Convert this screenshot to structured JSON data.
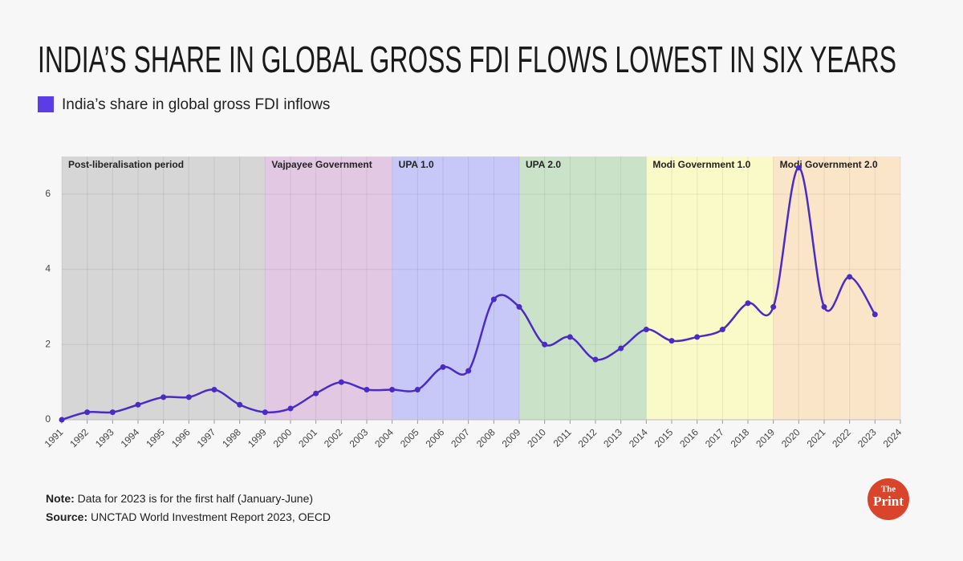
{
  "chart_data": {
    "type": "line",
    "title": "INDIA’S SHARE IN GLOBAL GROSS FDI FLOWS LOWEST IN SIX YEARS",
    "x": [
      1991,
      1992,
      1993,
      1994,
      1995,
      1996,
      1997,
      1998,
      1999,
      2000,
      2001,
      2002,
      2003,
      2004,
      2005,
      2006,
      2007,
      2008,
      2009,
      2010,
      2011,
      2012,
      2013,
      2014,
      2015,
      2016,
      2017,
      2018,
      2019,
      2020,
      2021,
      2022,
      2023
    ],
    "series": [
      {
        "name": "India’s share in global gross FDI inflows",
        "color": "#4a2bc4",
        "legend_color": "#5b3de8",
        "values": [
          0,
          0.2,
          0.2,
          0.4,
          0.6,
          0.6,
          0.8,
          0.4,
          0.2,
          0.3,
          0.7,
          1.0,
          0.8,
          0.8,
          0.8,
          1.4,
          1.3,
          3.2,
          3.0,
          2.0,
          2.2,
          1.6,
          1.9,
          2.4,
          2.1,
          2.2,
          2.4,
          3.1,
          3.0,
          6.7,
          3.0,
          3.8,
          2.8
        ]
      }
    ],
    "periods": [
      {
        "label": "Post-liberalisation period",
        "start": 1991,
        "end": 1999,
        "color": "#d6d6d6"
      },
      {
        "label": "Vajpayee Government",
        "start": 1999,
        "end": 2004,
        "color": "#e3c8e3"
      },
      {
        "label": "UPA 1.0",
        "start": 2004,
        "end": 2009,
        "color": "#c8c8f8"
      },
      {
        "label": "UPA 2.0",
        "start": 2009,
        "end": 2014,
        "color": "#cae3c8"
      },
      {
        "label": "Modi Government 1.0",
        "start": 2014,
        "end": 2019,
        "color": "#fafac8"
      },
      {
        "label": "Modi Government 2.0",
        "start": 2019,
        "end": 2024,
        "color": "#fbe5c8"
      }
    ],
    "xlim": [
      1991,
      2024
    ],
    "xticks": [
      1991,
      1992,
      1993,
      1994,
      1995,
      1996,
      1997,
      1998,
      1999,
      2000,
      2001,
      2002,
      2003,
      2004,
      2005,
      2006,
      2007,
      2008,
      2009,
      2010,
      2011,
      2012,
      2013,
      2014,
      2015,
      2016,
      2017,
      2018,
      2019,
      2020,
      2021,
      2022,
      2023,
      2024
    ],
    "ylim": [
      0,
      7
    ],
    "yticks": [
      0,
      2,
      4,
      6
    ],
    "grid": true,
    "note_label": "Note:",
    "note": "Data for 2023 is for the first half (January-June)",
    "source_label": "Source:",
    "source": "UNCTAD World Investment Report 2023, OECD",
    "logo": [
      "The",
      "Print"
    ]
  }
}
